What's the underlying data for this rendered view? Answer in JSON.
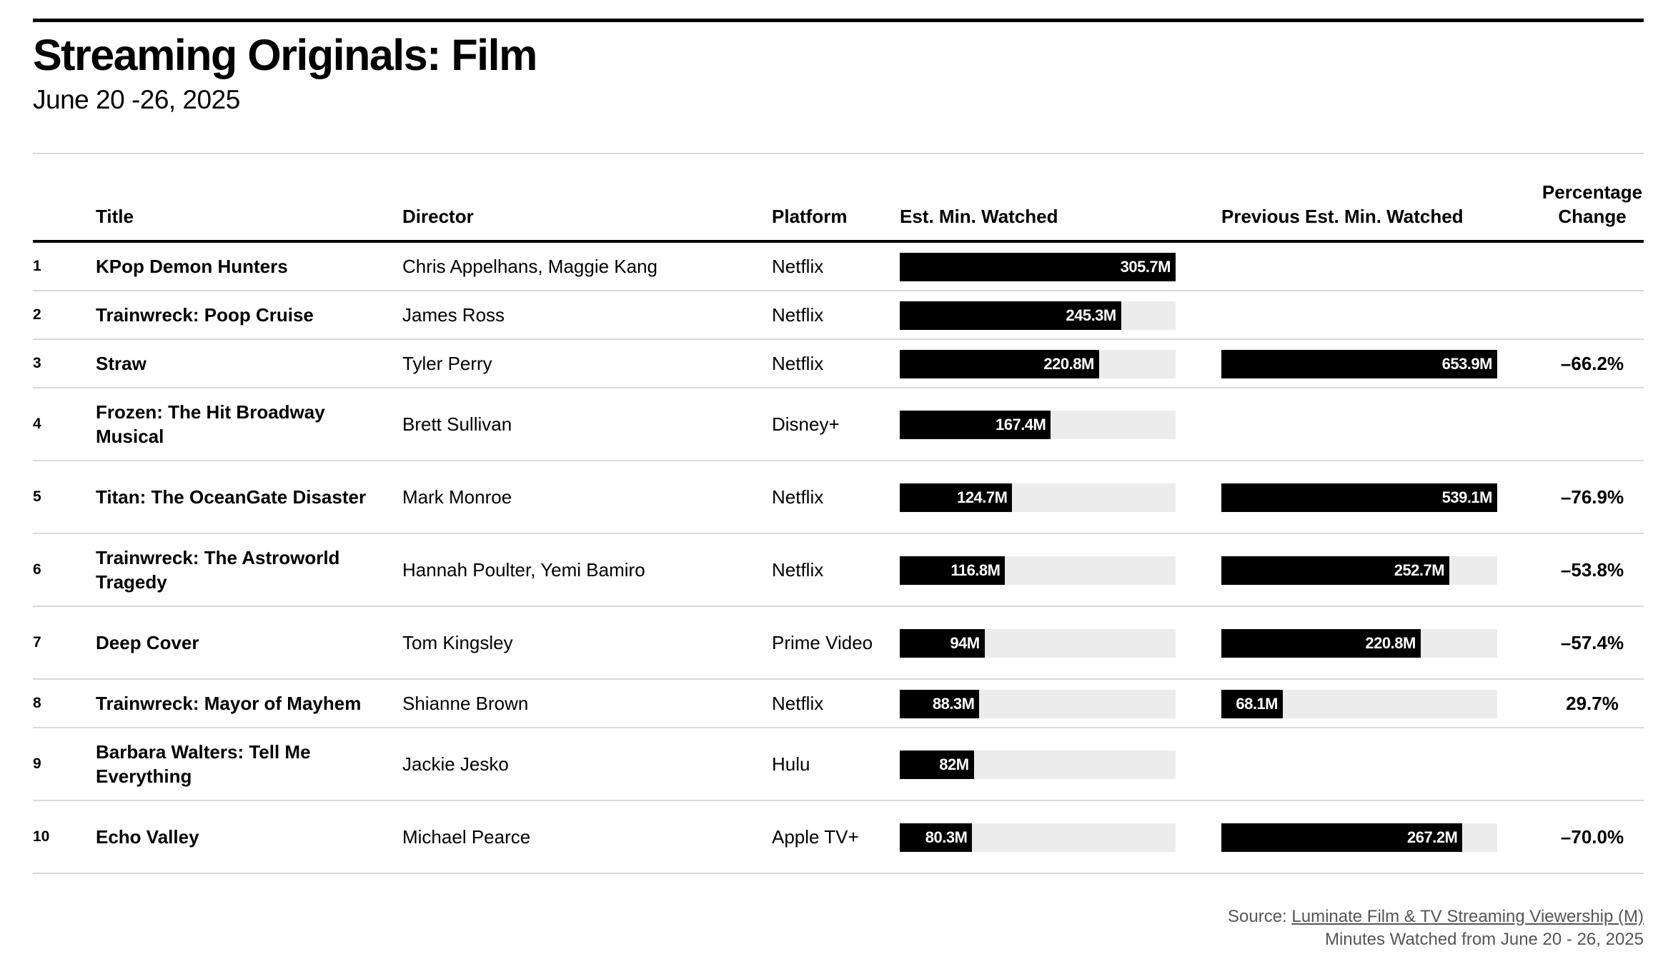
{
  "header": {
    "title": "Streaming Originals: Film",
    "subtitle": "June 20 -26, 2025"
  },
  "columns": {
    "title": "Title",
    "director": "Director",
    "platform": "Platform",
    "est_min_watched": "Est. Min. Watched",
    "prev_est_min_watched": "Previous Est. Min. Watched",
    "pct_change_line1": "Percentage",
    "pct_change_line2": "Change"
  },
  "footer": {
    "source_prefix": "Source: ",
    "source_link": "Luminate Film & TV Streaming Viewership (M)",
    "note": "Minutes Watched from June 20 - 26, 2025"
  },
  "colors": {
    "bar": "#000000",
    "track": "#ececec",
    "rule": "#d9d9d9"
  },
  "chart_data": {
    "type": "table",
    "unit": "M",
    "bar_max": 305.7,
    "rows": [
      {
        "rank": "1",
        "title": "KPop Demon Hunters",
        "director": "Chris Appelhans, Maggie Kang",
        "platform": "Netflix",
        "est": 305.7,
        "est_label": "305.7M",
        "prev": null,
        "prev_label": "",
        "pct": ""
      },
      {
        "rank": "2",
        "title": "Trainwreck: Poop Cruise",
        "director": "James Ross",
        "platform": "Netflix",
        "est": 245.3,
        "est_label": "245.3M",
        "prev": null,
        "prev_label": "",
        "pct": ""
      },
      {
        "rank": "3",
        "title": "Straw",
        "director": "Tyler Perry",
        "platform": "Netflix",
        "est": 220.8,
        "est_label": "220.8M",
        "prev": 653.9,
        "prev_label": "653.9M",
        "pct": "–66.2%"
      },
      {
        "rank": "4",
        "title": "Frozen: The Hit Broadway Musical",
        "director": "Brett Sullivan",
        "platform": "Disney+",
        "est": 167.4,
        "est_label": "167.4M",
        "prev": null,
        "prev_label": "",
        "pct": ""
      },
      {
        "rank": "5",
        "title": "Titan: The OceanGate Disaster",
        "director": "Mark Monroe",
        "platform": "Netflix",
        "est": 124.7,
        "est_label": "124.7M",
        "prev": 539.1,
        "prev_label": "539.1M",
        "pct": "–76.9%"
      },
      {
        "rank": "6",
        "title": "Trainwreck: The Astroworld Tragedy",
        "director": "Hannah Poulter, Yemi Bamiro",
        "platform": "Netflix",
        "est": 116.8,
        "est_label": "116.8M",
        "prev": 252.7,
        "prev_label": "252.7M",
        "pct": "–53.8%"
      },
      {
        "rank": "7",
        "title": "Deep Cover",
        "director": "Tom Kingsley",
        "platform": "Prime Video",
        "est": 94,
        "est_label": "94M",
        "prev": 220.8,
        "prev_label": "220.8M",
        "pct": "–57.4%"
      },
      {
        "rank": "8",
        "title": "Trainwreck: Mayor of Mayhem",
        "director": "Shianne Brown",
        "platform": "Netflix",
        "est": 88.3,
        "est_label": "88.3M",
        "prev": 68.1,
        "prev_label": "68.1M",
        "pct": "29.7%"
      },
      {
        "rank": "9",
        "title": "Barbara Walters: Tell Me Everything",
        "director": "Jackie Jesko",
        "platform": "Hulu",
        "est": 82,
        "est_label": "82M",
        "prev": null,
        "prev_label": "",
        "pct": ""
      },
      {
        "rank": "10",
        "title": "Echo Valley",
        "director": "Michael Pearce",
        "platform": "Apple TV+",
        "est": 80.3,
        "est_label": "80.3M",
        "prev": 267.2,
        "prev_label": "267.2M",
        "pct": "–70.0%"
      }
    ]
  }
}
